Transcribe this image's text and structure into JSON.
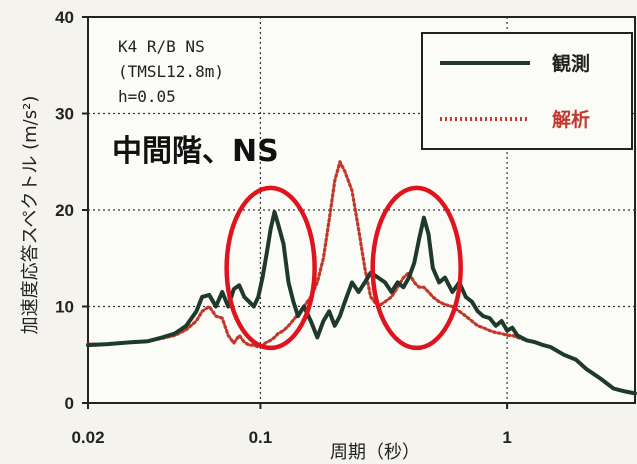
{
  "chart_data": {
    "type": "line",
    "x_scale": "log",
    "xlim": [
      0.02,
      3.3
    ],
    "ylim": [
      0,
      40
    ],
    "x_ticks": [
      "0.02",
      "0.1",
      "1"
    ],
    "y_ticks": [
      "0",
      "10",
      "20",
      "30",
      "40"
    ],
    "xlabel": "周期（秒）",
    "ylabel": "加速度応答スペクトル (m/s²)",
    "grid": "dotted",
    "annotations": {
      "line1": "K4 R/B NS",
      "line2": "(TMSL12.8m)",
      "line3": "h=0.05",
      "overlay_title": "中間階、NS"
    },
    "legend": {
      "placement": "top-right",
      "colors": {
        "observed": "#1e3a2a",
        "analysis": "#c0392b"
      }
    },
    "highlights": [
      {
        "x_center": 0.11,
        "y_center": 14,
        "color": "#e0141e"
      },
      {
        "x_center": 0.43,
        "y_center": 14,
        "color": "#e0141e"
      }
    ],
    "series": [
      {
        "name": "観測",
        "style": "solid",
        "color": "#1e3a2a",
        "x": [
          0.02,
          0.024,
          0.03,
          0.035,
          0.04,
          0.045,
          0.05,
          0.055,
          0.058,
          0.062,
          0.066,
          0.07,
          0.074,
          0.078,
          0.082,
          0.086,
          0.09,
          0.094,
          0.098,
          0.102,
          0.106,
          0.11,
          0.114,
          0.118,
          0.124,
          0.13,
          0.136,
          0.142,
          0.15,
          0.16,
          0.17,
          0.18,
          0.19,
          0.2,
          0.21,
          0.22,
          0.235,
          0.25,
          0.265,
          0.28,
          0.3,
          0.32,
          0.34,
          0.36,
          0.38,
          0.4,
          0.42,
          0.44,
          0.46,
          0.48,
          0.5,
          0.53,
          0.56,
          0.6,
          0.64,
          0.68,
          0.72,
          0.76,
          0.8,
          0.85,
          0.9,
          0.95,
          1.0,
          1.05,
          1.1,
          1.2,
          1.3,
          1.4,
          1.5,
          1.7,
          1.9,
          2.1,
          2.4,
          2.7,
          3.0,
          3.3
        ],
        "y": [
          6.0,
          6.1,
          6.3,
          6.4,
          6.8,
          7.2,
          8.0,
          9.5,
          11.0,
          11.2,
          10.0,
          11.5,
          10.0,
          11.8,
          12.2,
          11.0,
          10.5,
          10.0,
          11.0,
          13.0,
          15.5,
          18.0,
          19.8,
          18.5,
          16.5,
          12.5,
          10.5,
          9.0,
          10.0,
          8.5,
          6.8,
          8.5,
          9.5,
          8.0,
          9.0,
          10.5,
          12.5,
          11.5,
          12.5,
          13.5,
          13.0,
          12.5,
          11.5,
          12.5,
          12.0,
          13.0,
          14.5,
          17.0,
          19.2,
          17.5,
          14.0,
          12.5,
          13.0,
          11.5,
          12.5,
          11.0,
          10.5,
          9.5,
          9.0,
          8.8,
          8.0,
          8.5,
          7.5,
          7.8,
          7.0,
          6.5,
          6.3,
          6.0,
          5.8,
          5.0,
          4.5,
          3.5,
          2.5,
          1.5,
          1.2,
          1.0
        ]
      },
      {
        "name": "解析",
        "style": "dotted",
        "color": "#c0392b",
        "x": [
          0.02,
          0.024,
          0.03,
          0.035,
          0.04,
          0.045,
          0.05,
          0.055,
          0.058,
          0.062,
          0.066,
          0.07,
          0.074,
          0.078,
          0.082,
          0.086,
          0.09,
          0.094,
          0.098,
          0.102,
          0.106,
          0.11,
          0.114,
          0.118,
          0.124,
          0.13,
          0.136,
          0.142,
          0.15,
          0.16,
          0.17,
          0.18,
          0.19,
          0.2,
          0.21,
          0.22,
          0.235,
          0.25,
          0.265,
          0.28,
          0.3,
          0.32,
          0.34,
          0.36,
          0.38,
          0.4,
          0.42,
          0.44,
          0.46,
          0.48,
          0.5,
          0.53,
          0.56,
          0.6,
          0.64,
          0.68,
          0.72,
          0.76,
          0.8,
          0.85,
          0.9,
          0.95,
          1.0,
          1.05,
          1.1,
          1.2,
          1.3,
          1.4,
          1.5,
          1.7,
          1.9,
          2.1,
          2.4,
          2.7,
          3.0,
          3.3
        ],
        "y": [
          6.1,
          6.1,
          6.3,
          6.4,
          6.7,
          7.0,
          7.6,
          8.5,
          9.5,
          10.0,
          9.0,
          8.8,
          7.0,
          6.2,
          7.0,
          6.3,
          6.0,
          6.0,
          5.8,
          6.0,
          6.3,
          6.5,
          6.8,
          7.2,
          7.5,
          8.0,
          8.6,
          9.2,
          10.0,
          11.0,
          12.5,
          15.0,
          19.0,
          23.0,
          25.0,
          24.0,
          22.0,
          18.0,
          14.0,
          11.0,
          10.0,
          10.5,
          11.0,
          12.0,
          13.0,
          13.5,
          12.5,
          12.0,
          12.0,
          11.5,
          11.0,
          10.5,
          10.2,
          10.0,
          9.5,
          9.0,
          8.5,
          8.0,
          7.8,
          7.5,
          7.3,
          7.2,
          7.0,
          7.0,
          6.8,
          6.5,
          6.3,
          6.0,
          5.8,
          5.0,
          4.5,
          3.5,
          2.5,
          1.5,
          1.2,
          1.0
        ]
      }
    ]
  }
}
